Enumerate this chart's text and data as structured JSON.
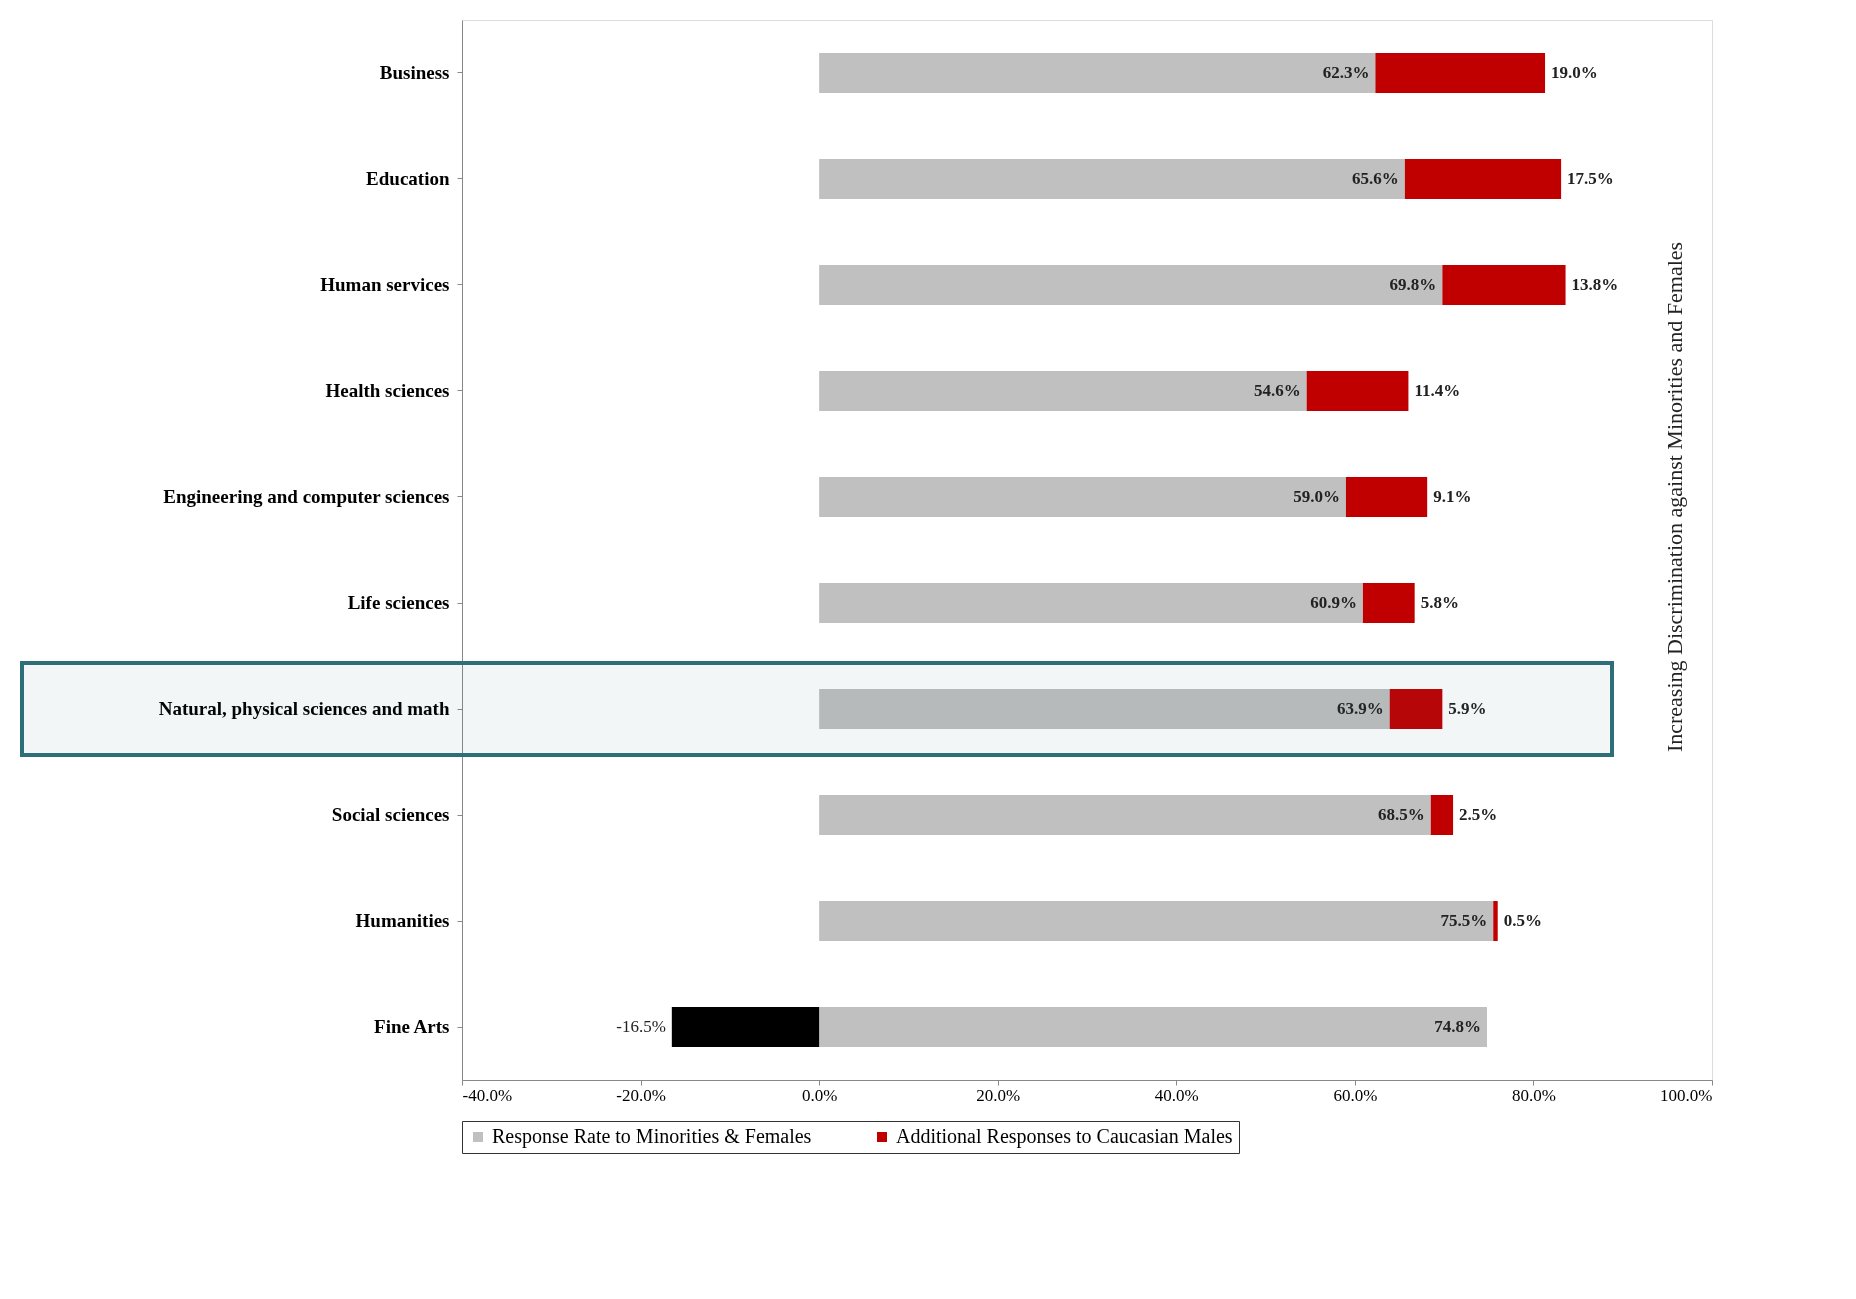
{
  "chart_data": {
    "type": "bar",
    "orientation": "horizontal",
    "stacked": true,
    "categories": [
      "Business",
      "Education",
      "Human services",
      "Health sciences",
      "Engineering and computer sciences",
      "Life sciences",
      "Natural, physical sciences and math",
      "Social sciences",
      "Humanities",
      "Fine Arts"
    ],
    "series": [
      {
        "name": "Response Rate to Minorities & Females",
        "color": "#c0c0c0",
        "values": [
          62.3,
          65.6,
          69.8,
          54.6,
          59.0,
          60.9,
          63.9,
          68.5,
          75.5,
          74.8
        ],
        "value_labels": [
          "62.3%",
          "65.6%",
          "69.8%",
          "54.6%",
          "59.0%",
          "60.9%",
          "63.9%",
          "68.5%",
          "75.5%",
          "74.8%"
        ]
      },
      {
        "name": "Additional Responses to Caucasian Males",
        "color": "#c00000",
        "colors": [
          "#c00000",
          "#c00000",
          "#c00000",
          "#c00000",
          "#c00000",
          "#c00000",
          "#c00000",
          "#c00000",
          "#c00000",
          "#000000"
        ],
        "values": [
          19.0,
          17.5,
          13.8,
          11.4,
          9.1,
          5.8,
          5.9,
          2.5,
          0.5,
          -16.5
        ],
        "value_labels": [
          "19.0%",
          "17.5%",
          "13.8%",
          "11.4%",
          "9.1%",
          "5.8%",
          "5.9%",
          "2.5%",
          "0.5%",
          "-16.5%"
        ]
      }
    ],
    "xlim": [
      -40,
      100
    ],
    "xticks": [
      {
        "value": -40,
        "label": "-40.0%"
      },
      {
        "value": -20,
        "label": "-20.0%"
      },
      {
        "value": 0,
        "label": "0.0%"
      },
      {
        "value": 20,
        "label": "20.0%"
      },
      {
        "value": 40,
        "label": "40.0%"
      },
      {
        "value": 60,
        "label": "60.0%"
      },
      {
        "value": 80,
        "label": "80.0%"
      },
      {
        "value": 100,
        "label": "100.0%"
      }
    ],
    "bands": [
      {
        "axis": "y",
        "from": "Natural, physical sciences and math",
        "to": "Natural, physical sciences and math",
        "color": "#2e6e78"
      }
    ],
    "annotations": [
      "Increasing Discrimination against Minorities and Females"
    ],
    "grid": false,
    "legend": "bottom"
  }
}
